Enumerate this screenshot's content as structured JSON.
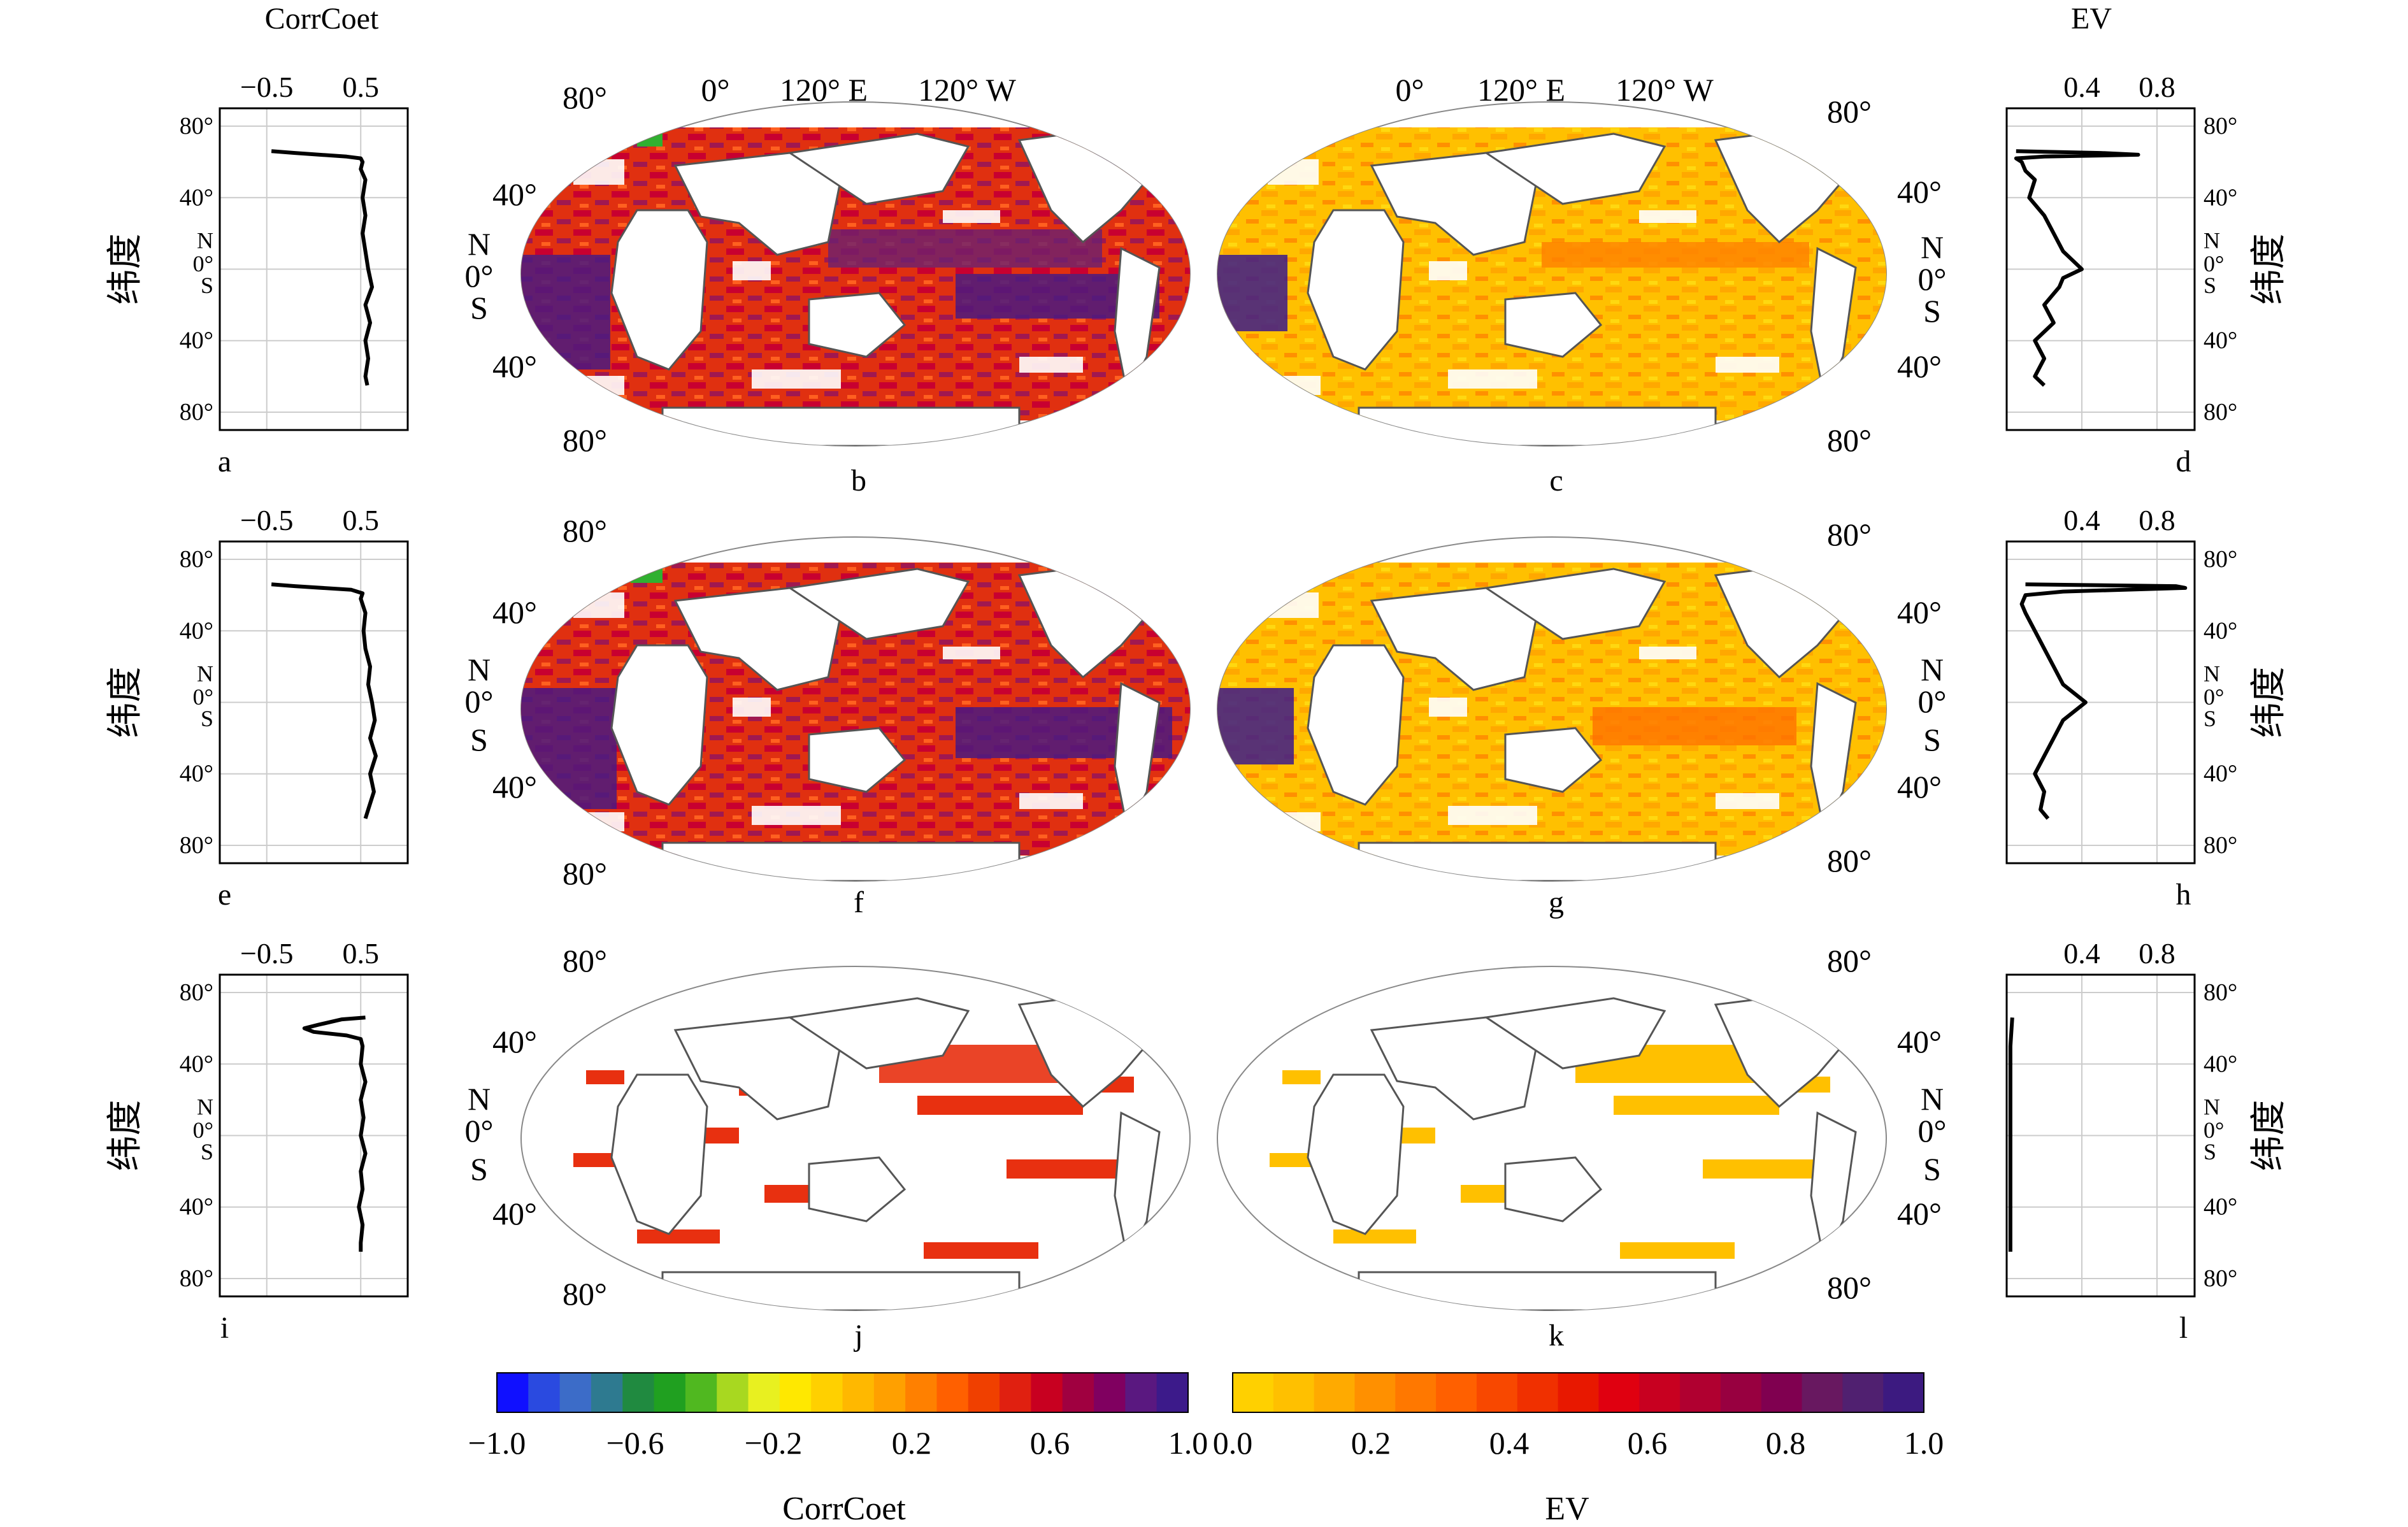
{
  "figure": {
    "labels": {
      "top_left": "CorrCoet",
      "top_right": "EV"
    },
    "latitude_label": "纬度",
    "map_ticks": {
      "lon": [
        "0°",
        "120° E",
        "120° W"
      ],
      "lat_north": "80°",
      "lat_mid_north": "40°",
      "lat_equator": "0°",
      "lat_south": "40°",
      "lat_south_far": "80°",
      "north": "N",
      "south": "S"
    },
    "profile_ticks_y": [
      "80°",
      "40°",
      "N",
      "0°",
      "S",
      "40°",
      "80°"
    ]
  },
  "chart_data": [
    {
      "panel": "a",
      "type": "line",
      "xlabel": "CorrCoet",
      "x_ticks": [
        "−0.5",
        "0.5"
      ],
      "xlim": [
        -1,
        1
      ],
      "ylim": [
        -90,
        90
      ],
      "grid": true,
      "series": [
        {
          "lat": [
            66,
            65,
            63,
            62,
            60,
            56,
            50,
            40,
            30,
            20,
            10,
            0,
            -10,
            -20,
            -30,
            -40,
            -50,
            -60,
            -65
          ],
          "values": [
            -0.45,
            -0.2,
            0.35,
            0.5,
            0.52,
            0.5,
            0.55,
            0.52,
            0.55,
            0.52,
            0.55,
            0.58,
            0.62,
            0.55,
            0.6,
            0.55,
            0.58,
            0.55,
            0.57
          ]
        }
      ]
    },
    {
      "panel": "b",
      "type": "heatmap",
      "scale": "CorrCoet"
    },
    {
      "panel": "c",
      "type": "heatmap",
      "scale": "EV"
    },
    {
      "panel": "d",
      "type": "line",
      "xlabel": "EV",
      "x_ticks": [
        "0.4",
        "0.8"
      ],
      "xlim": [
        0,
        1
      ],
      "ylim": [
        -90,
        90
      ],
      "grid": true,
      "series": [
        {
          "lat": [
            66,
            65,
            64,
            63,
            62,
            60,
            55,
            50,
            40,
            30,
            20,
            10,
            5,
            0,
            -5,
            -10,
            -20,
            -30,
            -40,
            -50,
            -60,
            -65
          ],
          "values": [
            0.05,
            0.5,
            0.7,
            0.2,
            0.05,
            0.08,
            0.1,
            0.15,
            0.12,
            0.2,
            0.25,
            0.3,
            0.35,
            0.4,
            0.3,
            0.28,
            0.2,
            0.25,
            0.15,
            0.2,
            0.15,
            0.2
          ]
        }
      ]
    },
    {
      "panel": "e",
      "type": "line",
      "xlabel": "",
      "x_ticks": [
        "−0.5",
        "0.5"
      ],
      "xlim": [
        -1,
        1
      ],
      "ylim": [
        -90,
        90
      ],
      "grid": true,
      "series": [
        {
          "lat": [
            66,
            65,
            63,
            61,
            58,
            50,
            40,
            30,
            20,
            10,
            0,
            -10,
            -20,
            -30,
            -40,
            -50,
            -60,
            -65
          ],
          "values": [
            -0.45,
            -0.2,
            0.4,
            0.52,
            0.5,
            0.55,
            0.53,
            0.55,
            0.6,
            0.58,
            0.62,
            0.65,
            0.6,
            0.66,
            0.6,
            0.64,
            0.58,
            0.55
          ]
        }
      ]
    },
    {
      "panel": "f",
      "type": "heatmap",
      "scale": "CorrCoet"
    },
    {
      "panel": "g",
      "type": "heatmap",
      "scale": "EV"
    },
    {
      "panel": "h",
      "type": "line",
      "xlabel": "",
      "x_ticks": [
        "0.4",
        "0.8"
      ],
      "xlim": [
        0,
        1
      ],
      "ylim": [
        -90,
        90
      ],
      "grid": true,
      "series": [
        {
          "lat": [
            66,
            65,
            64,
            62,
            60,
            55,
            50,
            40,
            30,
            20,
            10,
            0,
            -10,
            -20,
            -30,
            -40,
            -50,
            -60,
            -65
          ],
          "values": [
            0.1,
            0.9,
            0.95,
            0.3,
            0.1,
            0.08,
            0.1,
            0.15,
            0.2,
            0.25,
            0.3,
            0.42,
            0.3,
            0.25,
            0.2,
            0.15,
            0.2,
            0.18,
            0.22
          ]
        }
      ]
    },
    {
      "panel": "i",
      "type": "line",
      "xlabel": "",
      "x_ticks": [
        "−0.5",
        "0.5"
      ],
      "xlim": [
        -1,
        1
      ],
      "ylim": [
        -90,
        90
      ],
      "grid": true,
      "series": [
        {
          "lat": [
            66,
            65,
            62,
            60,
            58,
            56,
            54,
            50,
            40,
            30,
            20,
            10,
            0,
            -10,
            -20,
            -30,
            -40,
            -50,
            -60,
            -65
          ],
          "values": [
            0.55,
            0.3,
            0.05,
            -0.1,
            0.0,
            0.35,
            0.5,
            0.52,
            0.5,
            0.55,
            0.5,
            0.53,
            0.5,
            0.55,
            0.5,
            0.52,
            0.48,
            0.52,
            0.5,
            0.5
          ]
        }
      ]
    },
    {
      "panel": "j",
      "type": "heatmap",
      "scale": "CorrCoet"
    },
    {
      "panel": "k",
      "type": "heatmap",
      "scale": "EV"
    },
    {
      "panel": "l",
      "type": "line",
      "xlabel": "",
      "x_ticks": [
        "0.4",
        "0.8"
      ],
      "xlim": [
        0,
        1
      ],
      "ylim": [
        -90,
        90
      ],
      "grid": true,
      "series": [
        {
          "lat": [
            66,
            50,
            30,
            10,
            0,
            -10,
            -30,
            -50,
            -65
          ],
          "values": [
            0.03,
            0.02,
            0.02,
            0.02,
            0.02,
            0.02,
            0.02,
            0.02,
            0.02
          ]
        }
      ]
    },
    {
      "panel": "colorbar-corr",
      "type": "heatmap",
      "label": "CorrCoet",
      "range": [
        -1,
        1
      ],
      "ticks": [
        "−1.0",
        "−0.6",
        "−0.2",
        "0.2",
        "0.6",
        "1.0"
      ],
      "colors": [
        "#1010ff",
        "#2a4ae0",
        "#3c6cc8",
        "#2e7a90",
        "#208a40",
        "#20a020",
        "#50b820",
        "#a8d820",
        "#e8f020",
        "#ffe800",
        "#ffd000",
        "#ffb800",
        "#ffa000",
        "#ff8000",
        "#ff6000",
        "#f04000",
        "#e02010",
        "#c80020",
        "#a00040",
        "#800060",
        "#5a1880",
        "#3c1a8a"
      ]
    },
    {
      "panel": "colorbar-ev",
      "type": "heatmap",
      "label": "EV",
      "range": [
        0,
        1
      ],
      "ticks": [
        "0.0",
        "0.2",
        "0.4",
        "0.6",
        "0.8",
        "1.0"
      ],
      "colors": [
        "#ffd000",
        "#ffc000",
        "#ffaa00",
        "#ff9000",
        "#ff7800",
        "#ff6000",
        "#f84800",
        "#f03000",
        "#e81800",
        "#e00010",
        "#c80020",
        "#b00030",
        "#980040",
        "#800050",
        "#681860",
        "#502070",
        "#3c1a80"
      ]
    }
  ]
}
